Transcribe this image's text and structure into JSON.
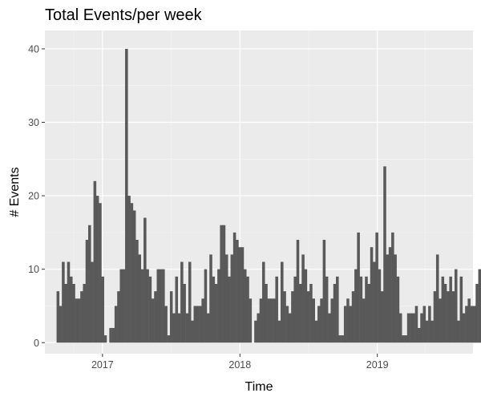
{
  "chart_data": {
    "type": "bar",
    "title": "Total Events/per week",
    "xlabel": "Time",
    "ylabel": "# Events",
    "x_unit": "week",
    "x_start": "2016-09-01",
    "ylim": [
      -1.5,
      42.5
    ],
    "xlim": [
      "2016-08-01",
      "2019-09-12"
    ],
    "y_ticks": [
      0,
      10,
      20,
      30,
      40
    ],
    "x_ticks": [
      {
        "date": "2017-01-01",
        "label": "2017"
      },
      {
        "date": "2018-01-01",
        "label": "2018"
      },
      {
        "date": "2019-01-01",
        "label": "2019"
      }
    ],
    "grid": true,
    "colors": {
      "bar": "#595959",
      "panel": "#ebebeb",
      "grid_major": "#ffffff",
      "grid_minor": "#f5f5f5"
    },
    "values": [
      7,
      5,
      11,
      8,
      11,
      9,
      8,
      6,
      6,
      7,
      8,
      14,
      16,
      11,
      22,
      20,
      19,
      9,
      1,
      0,
      2,
      2,
      5,
      7,
      10,
      10,
      40,
      20,
      19,
      18,
      14,
      12,
      10,
      17,
      10,
      9,
      6,
      7,
      10,
      10,
      10,
      5,
      1,
      7,
      4,
      9,
      4,
      11,
      8,
      4,
      11,
      3,
      5,
      5,
      5,
      6,
      10,
      4,
      12,
      9,
      8,
      10,
      16,
      16,
      12,
      9,
      12,
      15,
      14,
      13,
      13,
      10,
      9,
      6,
      0,
      3,
      4,
      6,
      11,
      8,
      6,
      6,
      6,
      9,
      3,
      11,
      7,
      5,
      4,
      7,
      9,
      14,
      8,
      12,
      10,
      7,
      8,
      6,
      3,
      5,
      6,
      14,
      9,
      4,
      6,
      8,
      9,
      1,
      1,
      5,
      6,
      5,
      7,
      10,
      15,
      9,
      6,
      9,
      8,
      13,
      11,
      15,
      10,
      7,
      24,
      12,
      13,
      15,
      12,
      9,
      4,
      1,
      1,
      4,
      4,
      4,
      5,
      2,
      4,
      5,
      3,
      5,
      3,
      7,
      12,
      6,
      9,
      8,
      7,
      9,
      7,
      10,
      3,
      9,
      4,
      5,
      6,
      5,
      5,
      8,
      10,
      7,
      11,
      8,
      5,
      5,
      4,
      3,
      3,
      7,
      10,
      7,
      13,
      4,
      3,
      3,
      6,
      3,
      6,
      3,
      4,
      5,
      1
    ],
    "annotations": []
  }
}
